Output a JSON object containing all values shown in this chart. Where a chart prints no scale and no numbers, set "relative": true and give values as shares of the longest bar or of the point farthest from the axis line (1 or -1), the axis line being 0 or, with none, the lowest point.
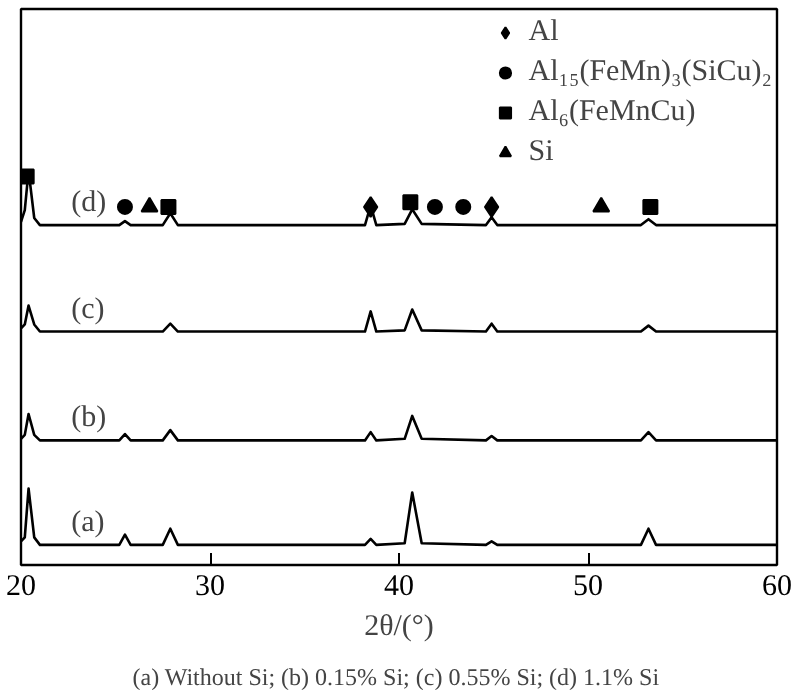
{
  "chart_data": {
    "type": "line",
    "relative": true,
    "xlabel": "2θ/(°)",
    "xlim": [
      20,
      60
    ],
    "xticks": [
      20,
      30,
      40,
      50,
      60
    ],
    "tick_labels": "x",
    "grid": false,
    "legend": "top right",
    "line_style": "solid",
    "annotations": [
      "(a) Without Si; (b) 0.15% Si; (c)  0.55% Si; (d) 1.1% Si"
    ],
    "series": [
      {
        "name": "(a)",
        "color": "#000000",
        "x": [
          20,
          20.2,
          20.4,
          20.7,
          21,
          25.2,
          25.5,
          25.8,
          27.5,
          27.9,
          28.3,
          38.2,
          38.5,
          38.8,
          40.3,
          40.7,
          41.2,
          44.6,
          44.9,
          45.2,
          52.8,
          53.2,
          53.6,
          60
        ],
        "values": [
          0.06,
          0.07,
          0.194,
          0.07,
          0.051,
          0.051,
          0.077,
          0.051,
          0.051,
          0.092,
          0.051,
          0.051,
          0.066,
          0.051,
          0.055,
          0.184,
          0.055,
          0.051,
          0.06,
          0.051,
          0.051,
          0.092,
          0.051,
          0.051
        ]
      },
      {
        "name": "(b)",
        "color": "#000000",
        "x": [
          20,
          20.2,
          20.4,
          20.7,
          21,
          25.2,
          25.5,
          25.8,
          27.5,
          27.9,
          28.3,
          38.2,
          38.5,
          38.8,
          40.3,
          40.7,
          41.2,
          44.6,
          44.9,
          45.2,
          52.8,
          53.2,
          53.6,
          60
        ],
        "values": [
          0.32,
          0.33,
          0.383,
          0.33,
          0.316,
          0.316,
          0.332,
          0.316,
          0.316,
          0.342,
          0.316,
          0.316,
          0.337,
          0.316,
          0.32,
          0.378,
          0.32,
          0.316,
          0.327,
          0.316,
          0.316,
          0.337,
          0.316,
          0.316
        ]
      },
      {
        "name": "(c)",
        "color": "#000000",
        "x": [
          20,
          20.2,
          20.4,
          20.7,
          21,
          25.2,
          25.5,
          25.8,
          27.5,
          27.9,
          28.3,
          38.2,
          38.5,
          38.8,
          40.3,
          40.7,
          41.2,
          44.6,
          44.9,
          45.2,
          52.8,
          53.2,
          53.6,
          60
        ],
        "values": [
          0.6,
          0.61,
          0.658,
          0.61,
          0.592,
          0.592,
          0.592,
          0.592,
          0.592,
          0.612,
          0.592,
          0.592,
          0.643,
          0.592,
          0.595,
          0.648,
          0.595,
          0.592,
          0.612,
          0.592,
          0.592,
          0.607,
          0.592,
          0.592
        ]
      },
      {
        "name": "(d)",
        "color": "#000000",
        "x": [
          20,
          20.2,
          20.4,
          20.7,
          21,
          25.2,
          25.5,
          25.8,
          27.5,
          27.9,
          28.3,
          38.2,
          38.5,
          38.8,
          40.3,
          40.7,
          41.2,
          44.6,
          44.9,
          45.2,
          52.8,
          53.2,
          53.6,
          60
        ],
        "values": [
          0.87,
          0.9,
          1.0,
          0.88,
          0.862,
          0.862,
          0.872,
          0.862,
          0.862,
          0.892,
          0.862,
          0.862,
          0.912,
          0.862,
          0.865,
          0.902,
          0.865,
          0.862,
          0.882,
          0.862,
          0.862,
          0.877,
          0.862,
          0.862
        ]
      },
      {
        "type": "scatter",
        "name": "Al",
        "marker": "diamond",
        "color": "#000000",
        "x": [
          38.5,
          44.9
        ],
        "values": [
          0.908,
          0.908
        ]
      },
      {
        "type": "scatter",
        "name": "Al₁₅(FeMn)₃(SiCu)₂",
        "marker": "circle",
        "color": "#000000",
        "x": [
          25.5,
          41.9,
          43.4
        ],
        "values": [
          0.908,
          0.908,
          0.908
        ]
      },
      {
        "type": "scatter",
        "name": "Al₆(FeMnCu)",
        "marker": "square",
        "color": "#000000",
        "x": [
          20.3,
          27.8,
          40.6,
          53.3
        ],
        "values": [
          0.985,
          0.908,
          0.92,
          0.908
        ]
      },
      {
        "type": "scatter",
        "name": "Si",
        "marker": "triangle",
        "color": "#000000",
        "x": [
          26.8,
          50.7
        ],
        "values": [
          0.908,
          0.908
        ]
      }
    ]
  }
}
